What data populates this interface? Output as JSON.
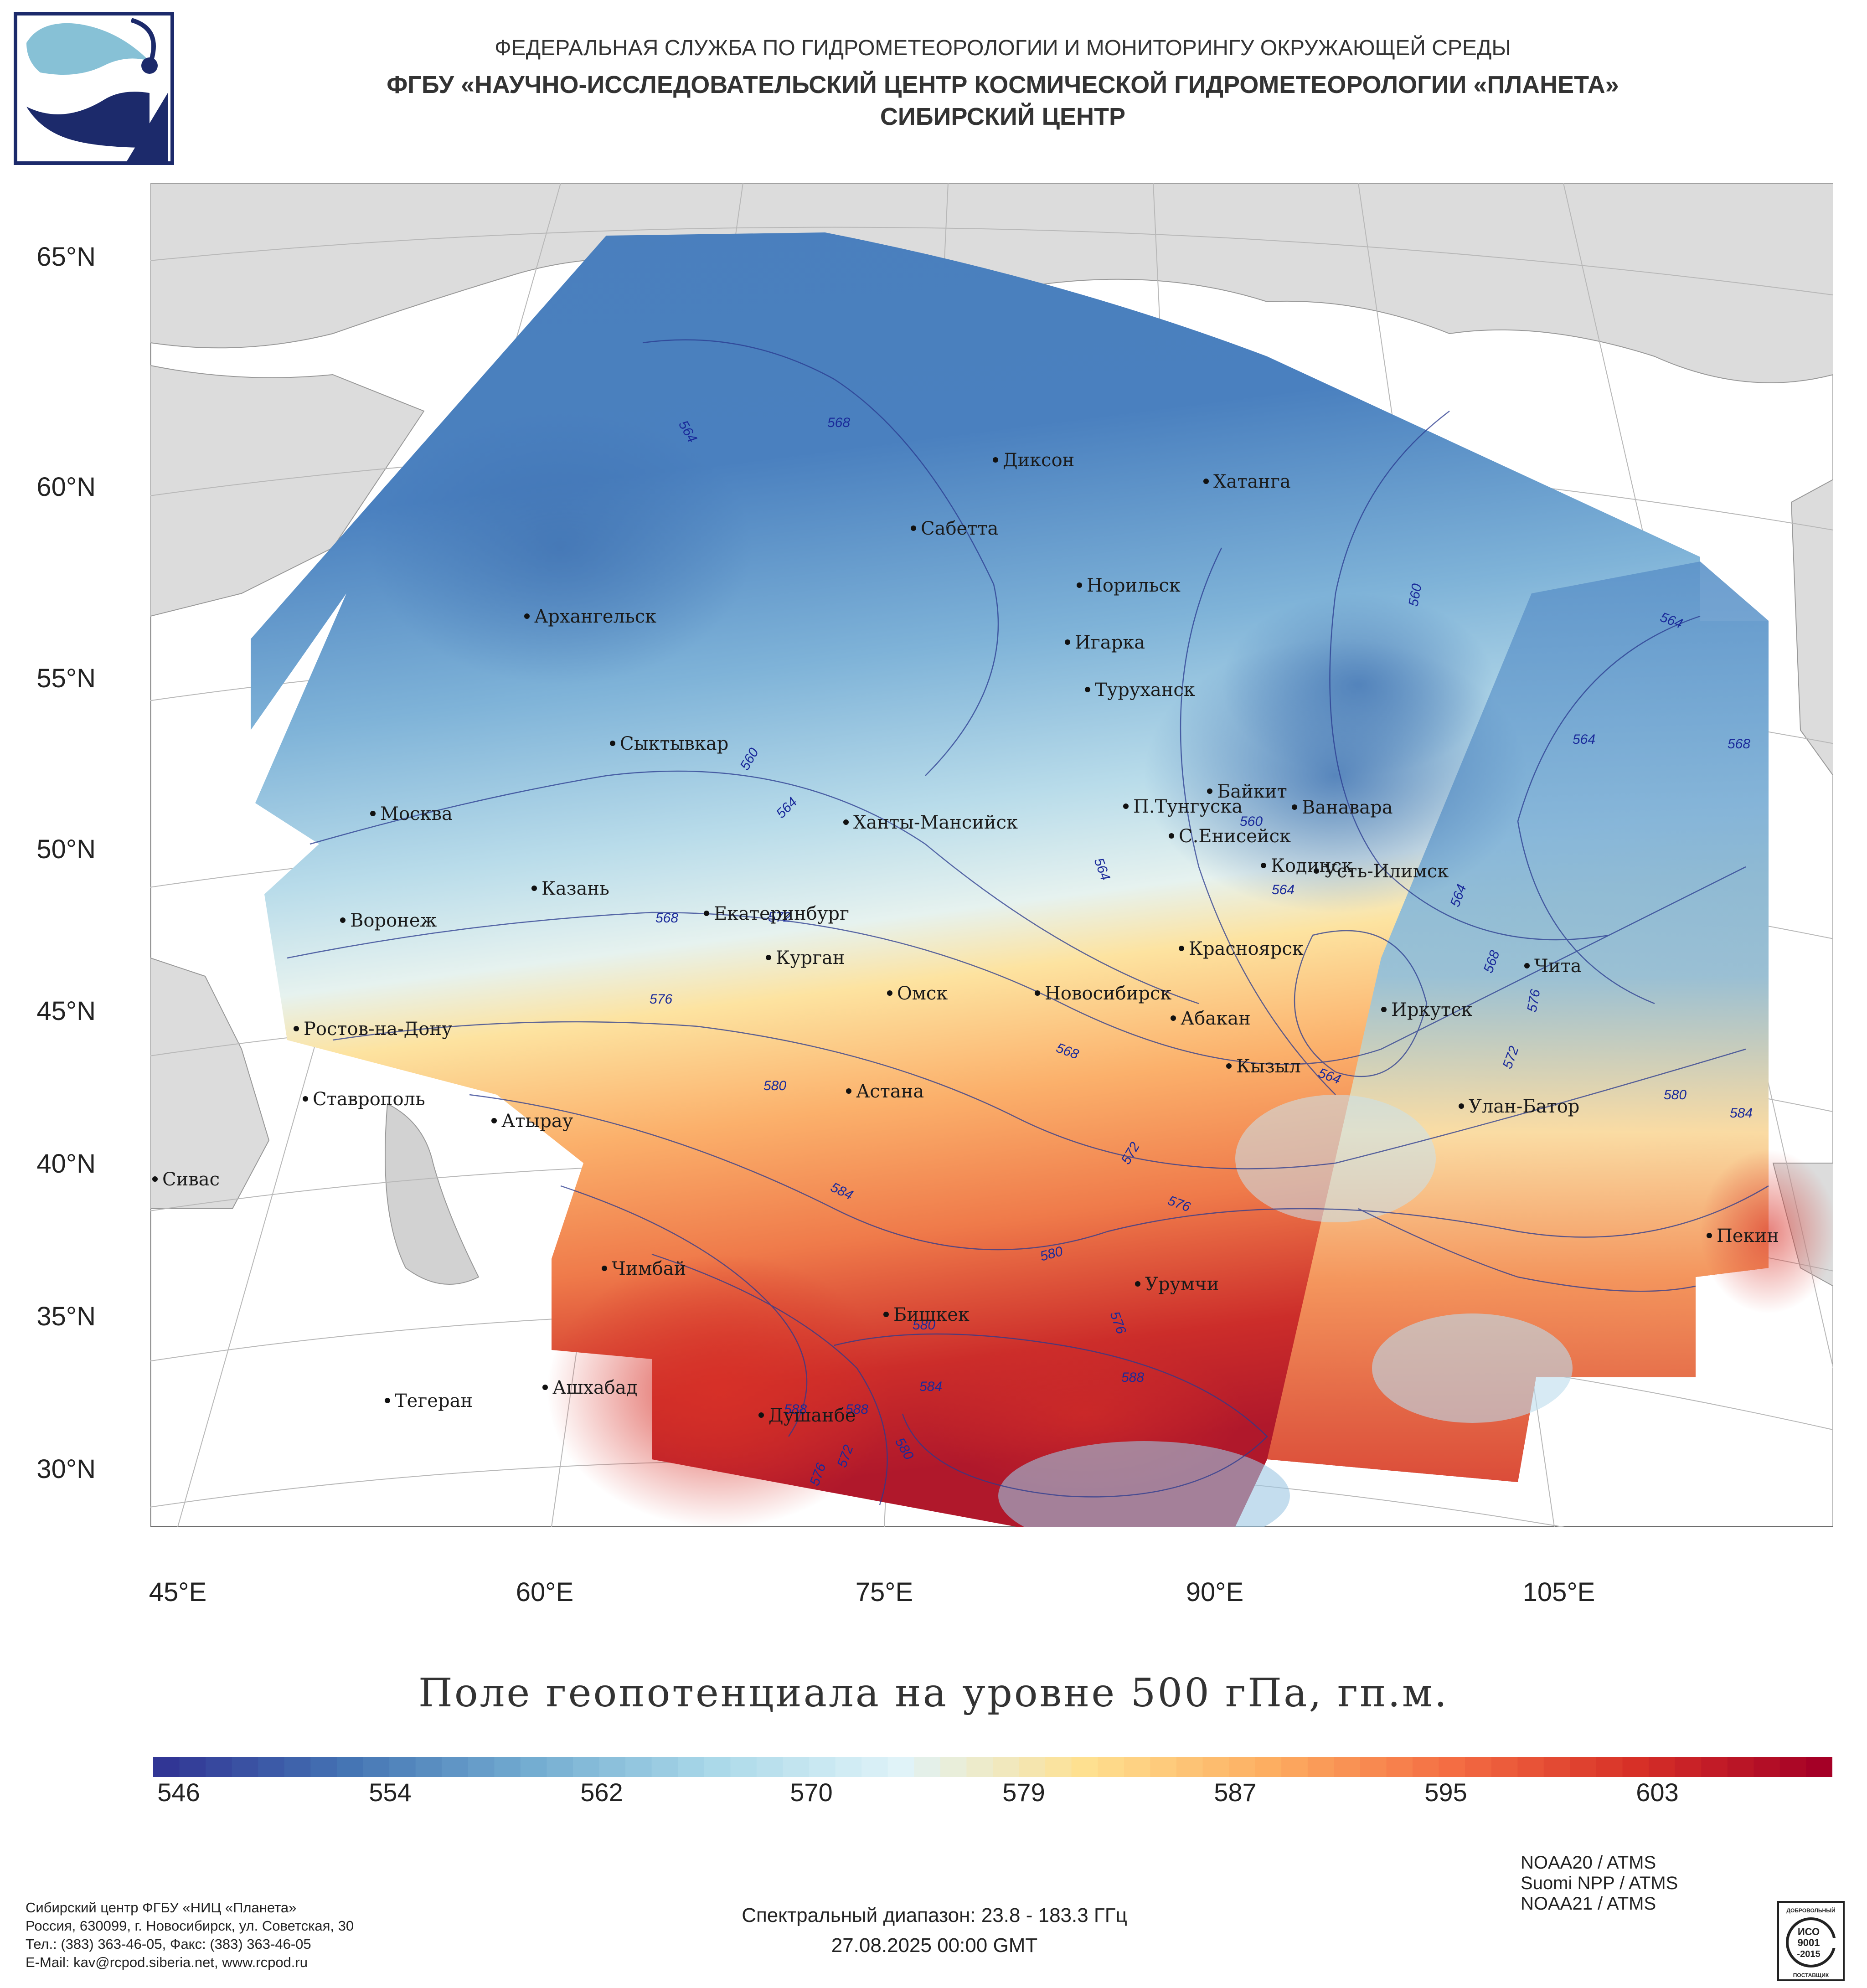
{
  "header": {
    "line1": "ФЕДЕРАЛЬНАЯ СЛУЖБА ПО ГИДРОМЕТЕОРОЛОГИИ И МОНИТОРИНГУ ОКРУЖАЮЩЕЙ СРЕДЫ",
    "line2": "ФГБУ «НАУЧНО-ИССЛЕДОВАТЕЛЬСКИЙ ЦЕНТР КОСМИЧЕСКОЙ ГИДРОМЕТЕОРОЛОГИИ «ПЛАНЕТА»",
    "line3": "СИБИРСКИЙ ЦЕНТР"
  },
  "map": {
    "lat_labels": [
      "65°N",
      "60°N",
      "55°N",
      "50°N",
      "45°N",
      "40°N",
      "35°N",
      "30°N"
    ],
    "lon_labels": [
      "45°E",
      "60°E",
      "75°E",
      "90°E",
      "105°E"
    ],
    "cities": [
      "Диксон",
      "Хатанга",
      "Сабетта",
      "Норильск",
      "Архангельск",
      "Игарка",
      "Туруханск",
      "Сыктывкар",
      "Байкит",
      "Москва",
      "П.Тунгуска",
      "Ванавара",
      "Ханты-Мансийск",
      "С.Енисейск",
      "Кодинск",
      "Усть-Илимск",
      "Казань",
      "Воронеж",
      "Екатеринбург",
      "Красноярск",
      "Чита",
      "Курган",
      "Омск",
      "Новосибирск",
      "Ростов-на-Дону",
      "Иркутск",
      "Абакан",
      "Кызыл",
      "Астана",
      "Ставрополь",
      "Улан-Батор",
      "Атырау",
      "Сивас",
      "Пекин",
      "Чимбай",
      "Урумчи",
      "Бишкек",
      "Ашхабад",
      "Тегеран",
      "Душанбе"
    ],
    "contour_labels": [
      "564",
      "568",
      "560",
      "564",
      "568",
      "572",
      "576",
      "580",
      "584",
      "588",
      "560",
      "564",
      "564",
      "568",
      "564",
      "568",
      "564",
      "572",
      "576",
      "580",
      "584",
      "572",
      "576",
      "580",
      "576",
      "584",
      "588",
      "572",
      "576",
      "580",
      "580"
    ],
    "colors": {
      "low": "#313695",
      "mid": "#f7f7d0",
      "high": "#a50026",
      "land": "#dcdcdc",
      "border": "#999999"
    }
  },
  "title": "Поле геопотенциала на уровне 500 гПа, гп.м.",
  "colorbar": {
    "ticks": [
      "546",
      "554",
      "562",
      "570",
      "579",
      "587",
      "595",
      "603"
    ],
    "min": 546,
    "max": 609,
    "colors": [
      "#313695",
      "#4575b4",
      "#74add1",
      "#abd9e9",
      "#e0f3f8",
      "#fee090",
      "#fdae61",
      "#f46d43",
      "#d73027",
      "#a50026"
    ]
  },
  "footer": {
    "org_lines": [
      "Сибирский центр ФГБУ «НИЦ «Планета»",
      "Россия, 630099, г. Новосибирск, ул. Советская, 30",
      "Тел.: (383) 363-46-05, Факс: (383) 363-46-05",
      "E-Mail: kav@rcpod.siberia.net, www.rcpod.ru"
    ],
    "spectral": "Спектральный диапазон: 23.8 - 183.3 ГГц",
    "datetime": "27.08.2025 00:00 GMT",
    "sensors": [
      "NOAA20 / ATMS",
      "Suomi NPP / ATMS",
      "NOAA21 / ATMS"
    ],
    "iso_lines": [
      "ДОБРОВОЛЬНЫЙ",
      "ИСО",
      "9001",
      "-2015",
      "ПОСТАВЩИК"
    ]
  }
}
